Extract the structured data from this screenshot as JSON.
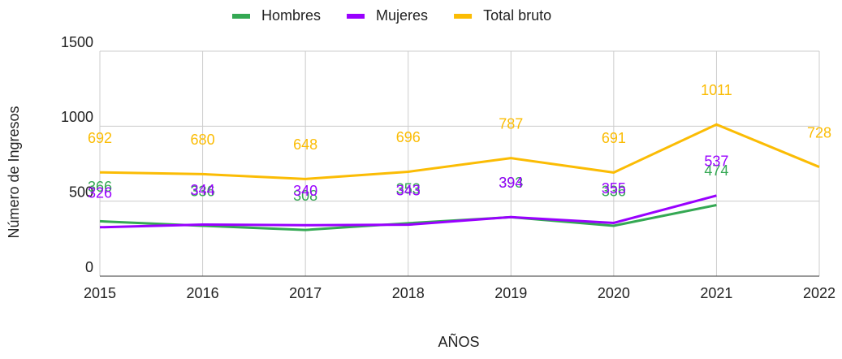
{
  "chart_data": {
    "type": "line",
    "x_label": "AÑOS",
    "y_label": "Número de Ingresos",
    "categories": [
      "2015",
      "2016",
      "2017",
      "2018",
      "2019",
      "2020",
      "2021",
      "2022"
    ],
    "series": [
      {
        "name": "Hombres",
        "color": "#34a853",
        "values": [
          366,
          336,
          308,
          353,
          393,
          336,
          474,
          null
        ]
      },
      {
        "name": "Mujeres",
        "color": "#9900ff",
        "values": [
          326,
          344,
          340,
          343,
          394,
          355,
          537,
          null
        ]
      },
      {
        "name": "Total bruto",
        "color": "#fbbc04",
        "values": [
          692,
          680,
          648,
          696,
          787,
          691,
          1011,
          728
        ]
      }
    ],
    "ylim": [
      0,
      1500
    ],
    "yticks": [
      0,
      500,
      1000,
      1500
    ],
    "grid": true,
    "legend": "top"
  }
}
